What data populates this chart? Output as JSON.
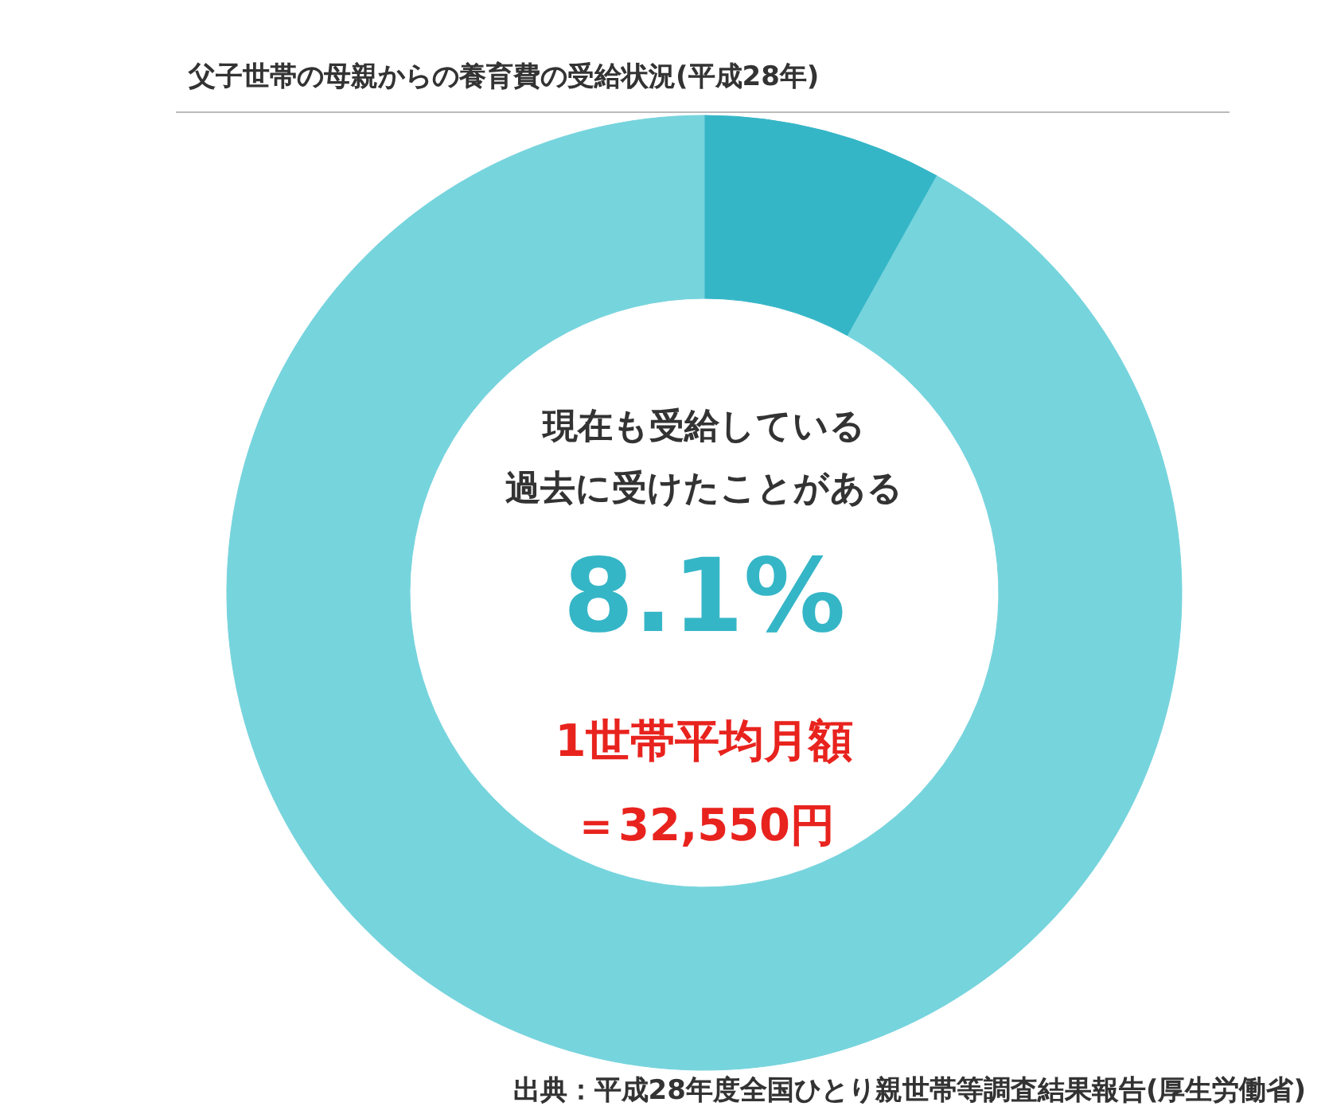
{
  "chart_data": {
    "type": "donut",
    "title": "父子世帯の母親からの養育費の受給状況(平成28年)",
    "categories": [
      null,
      null
    ],
    "values": [
      8.1,
      91.9
    ],
    "colors": [
      "#35b6c7",
      "#76d4dd"
    ],
    "annotations": [
      "現在も受給している",
      "過去に受けたことがある",
      "8.1%",
      "1世帯平均月額",
      "＝32,550円",
      "出典：平成28年度全国ひとり親世帯等調査結果報告(厚生労働省)"
    ]
  }
}
